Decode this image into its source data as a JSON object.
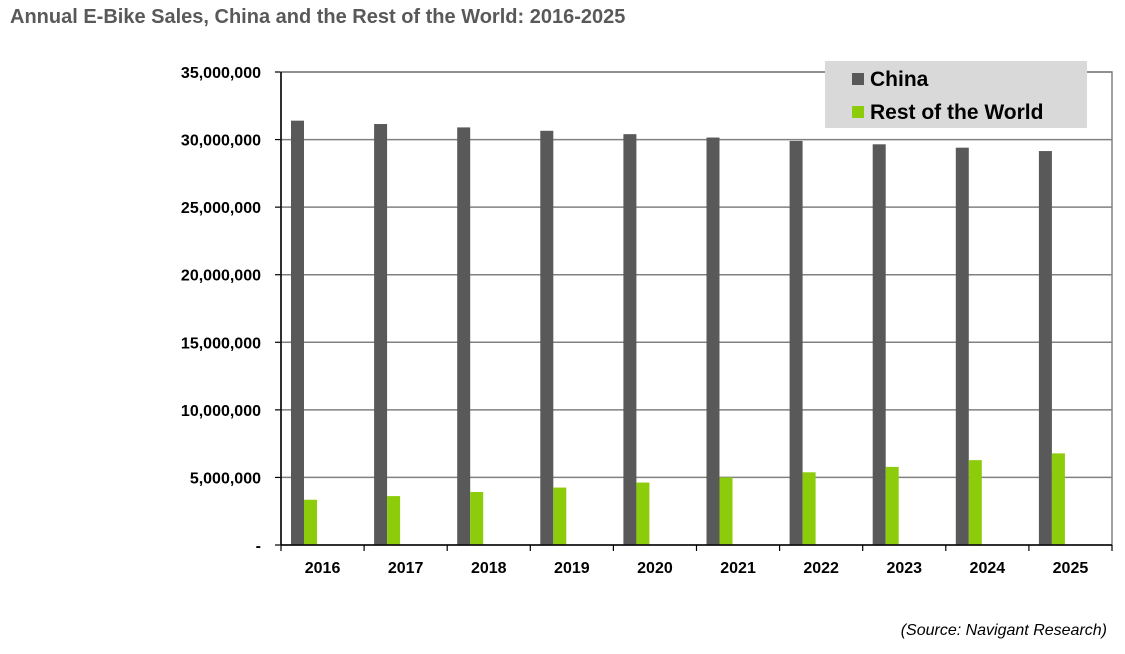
{
  "chart_data": {
    "type": "bar",
    "title": "Annual E-Bike Sales, China and the Rest of the World: 2016-2025",
    "categories": [
      "2016",
      "2017",
      "2018",
      "2019",
      "2020",
      "2021",
      "2022",
      "2023",
      "2024",
      "2025"
    ],
    "series": [
      {
        "name": "China",
        "color": "#595959",
        "values": [
          31400000,
          31150000,
          30900000,
          30650000,
          30400000,
          30150000,
          29900000,
          29650000,
          29400000,
          29150000
        ]
      },
      {
        "name": "Rest of the World",
        "color": "#8ccc0a",
        "values": [
          3350000,
          3620000,
          3920000,
          4250000,
          4620000,
          5000000,
          5380000,
          5780000,
          6280000,
          6780000
        ]
      }
    ],
    "ylim": [
      0,
      35000000
    ],
    "yticks": [
      {
        "value": 0,
        "label": "-"
      },
      {
        "value": 5000000,
        "label": "5,000,000"
      },
      {
        "value": 10000000,
        "label": "10,000,000"
      },
      {
        "value": 15000000,
        "label": "15,000,000"
      },
      {
        "value": 20000000,
        "label": "20,000,000"
      },
      {
        "value": 25000000,
        "label": "25,000,000"
      },
      {
        "value": 30000000,
        "label": "30,000,000"
      },
      {
        "value": 35000000,
        "label": "35,000,000"
      }
    ],
    "grid": true,
    "legend_position": "top-right",
    "xlabel": "",
    "ylabel": "",
    "gridline_color": "#808080",
    "legend_background": "#d9d9d9"
  },
  "source": "(Source: Navigant Research)"
}
